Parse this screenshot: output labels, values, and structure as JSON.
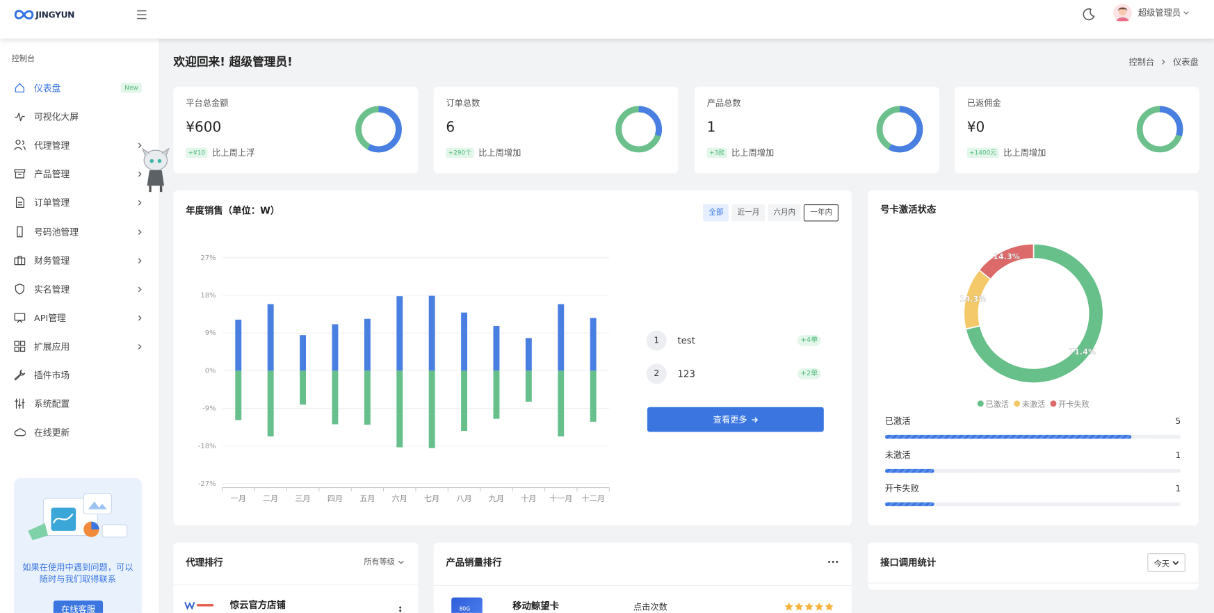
{
  "header": {
    "logo": "JINGYUN",
    "user": "超级管理员"
  },
  "sidebar": {
    "section": "控制台",
    "menu": [
      {
        "label": "仪表盘",
        "badge": "New",
        "active": true
      },
      {
        "label": "可视化大屏"
      },
      {
        "label": "代理管理",
        "submenu": true
      },
      {
        "label": "产品管理",
        "submenu": true
      },
      {
        "label": "订单管理",
        "submenu": true
      },
      {
        "label": "号码池管理",
        "submenu": true
      },
      {
        "label": "财务管理",
        "submenu": true
      },
      {
        "label": "实名管理",
        "submenu": true
      },
      {
        "label": "API管理",
        "submenu": true
      },
      {
        "label": "扩展应用",
        "submenu": true
      },
      {
        "label": "插件市场"
      },
      {
        "label": "系统配置"
      },
      {
        "label": "在线更新"
      }
    ],
    "help": {
      "text": "如果在使用中遇到问题，可以随时与我们取得联系",
      "button": "在线客服"
    }
  },
  "page": {
    "title": "欢迎回来! 超级管理员!",
    "breadcrumb": [
      "控制台",
      "仪表盘"
    ]
  },
  "stats": [
    {
      "label": "平台总金额",
      "value": "¥600",
      "change": "+¥10",
      "note": "比上周上浮",
      "ring": 58
    },
    {
      "label": "订单总数",
      "value": "6",
      "change": "+290个",
      "note": "比上周增加",
      "ring": 30
    },
    {
      "label": "产品总数",
      "value": "1",
      "change": "+3款",
      "note": "比上周增加",
      "ring": 58
    },
    {
      "label": "已返佣金",
      "value": "¥0",
      "change": "+1400元",
      "note": "比上周增加",
      "ring": 30
    }
  ],
  "sales": {
    "title": "年度销售（单位：W）",
    "tabs": [
      "全部",
      "近一月",
      "六月内",
      "一年内"
    ],
    "active_tab": 0,
    "chart_data": {
      "type": "bar",
      "categories": [
        "一月",
        "二月",
        "三月",
        "四月",
        "五月",
        "六月",
        "七月",
        "八月",
        "九月",
        "十月",
        "十一月",
        "十二月"
      ],
      "series": [
        {
          "color": "#4a7fe2",
          "values": [
            12.2,
            15.9,
            8.5,
            11.1,
            12.4,
            17.8,
            17.9,
            13.9,
            10.7,
            7.8,
            15.9,
            12.6
          ]
        },
        {
          "color": "#67c08c",
          "values": [
            -11.8,
            -15.7,
            -8.1,
            -12.8,
            -12.9,
            -18.3,
            -18.5,
            -14.4,
            -11.5,
            -7.4,
            -15.7,
            -12.2
          ]
        }
      ],
      "ylim": [
        -27,
        27
      ],
      "yticks": [
        {
          "value": 27,
          "label": "27%"
        },
        {
          "value": 18,
          "label": "18%"
        },
        {
          "value": 9,
          "label": "9%"
        },
        {
          "value": 0,
          "label": "0%"
        },
        {
          "value": -9,
          "label": "-9%"
        },
        {
          "value": -18,
          "label": "-18%"
        },
        {
          "value": -27,
          "label": "-27%"
        }
      ],
      "grid": true
    },
    "ranking": [
      {
        "rank": 1,
        "name": "test",
        "change": "+4单"
      },
      {
        "rank": 2,
        "name": "123",
        "change": "+2单"
      }
    ],
    "more": "查看更多"
  },
  "activation": {
    "title": "号卡激活状态",
    "chart_data": {
      "type": "pie",
      "categories": [
        "已激活",
        "未激活",
        "开卡失败"
      ],
      "colors": [
        "#67bf8a",
        "#f3c96a",
        "#dc6a6a"
      ],
      "values": [
        71.4,
        14.3,
        14.3
      ],
      "value_labels": [
        "71.4%",
        "14.3%",
        "14.3%"
      ]
    },
    "progress": {
      "xlim": [
        0,
        6
      ],
      "items": [
        {
          "label": "已激活",
          "value": 5
        },
        {
          "label": "未激活",
          "value": 1
        },
        {
          "label": "开卡失败",
          "value": 1
        }
      ]
    }
  },
  "agents": {
    "title": "代理排行",
    "filter": "所有等级",
    "rows": [
      {
        "name": "惊云官方店铺"
      }
    ]
  },
  "products": {
    "title": "产品销量排行",
    "rows": [
      {
        "thumb": "80G",
        "name": "移动鲸望卡",
        "metric": "点击次数",
        "stars": 5
      }
    ]
  },
  "api": {
    "title": "接口调用统计",
    "range": "今天"
  }
}
